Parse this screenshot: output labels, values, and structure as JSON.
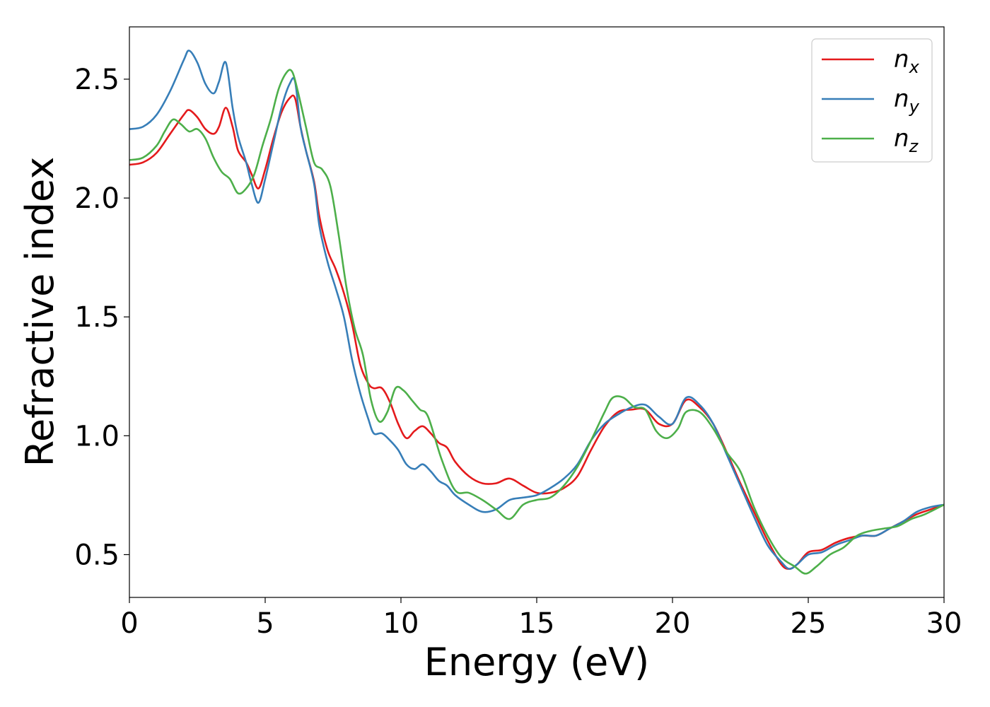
{
  "chart_data": {
    "type": "line",
    "xlabel": "Energy (eV)",
    "ylabel": "Refractive index",
    "xlim": [
      0,
      30
    ],
    "ylim": [
      0.32,
      2.72
    ],
    "xticks": [
      0,
      5,
      10,
      15,
      20,
      25,
      30
    ],
    "xtick_labels": [
      "0",
      "5",
      "10",
      "15",
      "20",
      "25",
      "30"
    ],
    "yticks": [
      0.5,
      1.0,
      1.5,
      2.0,
      2.5
    ],
    "ytick_labels": [
      "0.5",
      "1.0",
      "1.5",
      "2.0",
      "2.5"
    ],
    "grid": false,
    "legend_position": "top-right",
    "series": [
      {
        "name": "n",
        "subscript": "x",
        "color": "#e41a1c",
        "x": [
          0,
          0.5,
          1.0,
          1.5,
          2.0,
          2.2,
          2.5,
          2.8,
          3.1,
          3.3,
          3.55,
          3.8,
          4.0,
          4.3,
          4.5,
          4.75,
          5.0,
          5.3,
          5.6,
          5.9,
          6.1,
          6.3,
          6.5,
          6.8,
          7.0,
          7.3,
          7.6,
          7.9,
          8.2,
          8.5,
          8.8,
          9.0,
          9.3,
          9.6,
          9.9,
          10.2,
          10.5,
          10.8,
          11.1,
          11.4,
          11.7,
          12.0,
          12.5,
          13.0,
          13.5,
          14.0,
          14.5,
          15.0,
          15.5,
          16.0,
          16.5,
          17.0,
          17.5,
          18.0,
          18.5,
          19.0,
          19.5,
          20.0,
          20.5,
          21.0,
          21.5,
          22.0,
          22.5,
          23.0,
          23.5,
          24.0,
          24.3,
          24.6,
          25.0,
          25.5,
          26.0,
          26.5,
          27.0,
          27.5,
          28.0,
          28.5,
          29.0,
          29.5,
          30.0
        ],
        "y": [
          2.14,
          2.15,
          2.19,
          2.27,
          2.35,
          2.37,
          2.34,
          2.29,
          2.27,
          2.3,
          2.38,
          2.3,
          2.2,
          2.15,
          2.1,
          2.04,
          2.12,
          2.25,
          2.36,
          2.42,
          2.42,
          2.3,
          2.2,
          2.07,
          1.92,
          1.78,
          1.7,
          1.6,
          1.47,
          1.3,
          1.22,
          1.2,
          1.2,
          1.14,
          1.05,
          0.99,
          1.02,
          1.04,
          1.01,
          0.97,
          0.95,
          0.89,
          0.83,
          0.8,
          0.8,
          0.82,
          0.79,
          0.76,
          0.76,
          0.78,
          0.83,
          0.94,
          1.04,
          1.1,
          1.11,
          1.11,
          1.05,
          1.05,
          1.15,
          1.12,
          1.05,
          0.93,
          0.8,
          0.68,
          0.56,
          0.46,
          0.44,
          0.46,
          0.51,
          0.52,
          0.55,
          0.57,
          0.58,
          0.58,
          0.61,
          0.64,
          0.67,
          0.69,
          0.71
        ]
      },
      {
        "name": "n",
        "subscript": "y",
        "color": "#377eb8",
        "x": [
          0,
          0.5,
          1.0,
          1.5,
          2.0,
          2.2,
          2.5,
          2.8,
          3.1,
          3.3,
          3.55,
          3.8,
          4.0,
          4.3,
          4.5,
          4.75,
          5.0,
          5.3,
          5.6,
          5.9,
          6.1,
          6.3,
          6.5,
          6.8,
          7.0,
          7.3,
          7.6,
          7.9,
          8.2,
          8.5,
          8.8,
          9.0,
          9.3,
          9.6,
          9.9,
          10.2,
          10.5,
          10.8,
          11.1,
          11.4,
          11.7,
          12.0,
          12.5,
          13.0,
          13.5,
          14.0,
          14.5,
          15.0,
          15.5,
          16.0,
          16.5,
          17.0,
          17.5,
          18.0,
          18.5,
          19.0,
          19.5,
          20.0,
          20.5,
          21.0,
          21.5,
          22.0,
          22.5,
          23.0,
          23.5,
          24.0,
          24.3,
          24.6,
          25.0,
          25.5,
          26.0,
          26.5,
          27.0,
          27.5,
          28.0,
          28.5,
          29.0,
          29.5,
          30.0
        ],
        "y": [
          2.29,
          2.3,
          2.35,
          2.45,
          2.58,
          2.62,
          2.57,
          2.48,
          2.44,
          2.49,
          2.57,
          2.38,
          2.26,
          2.15,
          2.06,
          1.98,
          2.08,
          2.23,
          2.38,
          2.48,
          2.49,
          2.3,
          2.2,
          2.06,
          1.88,
          1.73,
          1.62,
          1.5,
          1.32,
          1.18,
          1.07,
          1.01,
          1.01,
          0.98,
          0.94,
          0.88,
          0.86,
          0.88,
          0.85,
          0.81,
          0.79,
          0.75,
          0.71,
          0.68,
          0.69,
          0.73,
          0.74,
          0.75,
          0.78,
          0.82,
          0.88,
          0.98,
          1.05,
          1.09,
          1.12,
          1.13,
          1.08,
          1.05,
          1.16,
          1.13,
          1.05,
          0.92,
          0.79,
          0.66,
          0.54,
          0.47,
          0.44,
          0.46,
          0.5,
          0.51,
          0.54,
          0.56,
          0.58,
          0.58,
          0.61,
          0.64,
          0.68,
          0.7,
          0.71
        ]
      },
      {
        "name": "n",
        "subscript": "z",
        "color": "#4daf4a",
        "x": [
          0,
          0.5,
          1.0,
          1.3,
          1.6,
          1.9,
          2.2,
          2.5,
          2.8,
          3.1,
          3.4,
          3.7,
          4.0,
          4.3,
          4.6,
          4.9,
          5.2,
          5.5,
          5.8,
          6.0,
          6.2,
          6.5,
          6.8,
          7.1,
          7.4,
          7.7,
          8.0,
          8.3,
          8.6,
          8.9,
          9.2,
          9.5,
          9.8,
          10.1,
          10.4,
          10.7,
          11.0,
          11.5,
          12.0,
          12.5,
          13.0,
          13.5,
          14.0,
          14.5,
          15.0,
          15.5,
          16.0,
          16.5,
          17.0,
          17.5,
          17.8,
          18.2,
          18.6,
          19.0,
          19.4,
          19.8,
          20.2,
          20.5,
          21.0,
          21.5,
          22.0,
          22.5,
          23.0,
          23.5,
          24.0,
          24.5,
          24.9,
          25.3,
          25.8,
          26.3,
          26.8,
          27.3,
          27.8,
          28.3,
          28.8,
          29.3,
          30.0
        ],
        "y": [
          2.16,
          2.17,
          2.22,
          2.28,
          2.33,
          2.31,
          2.28,
          2.29,
          2.25,
          2.17,
          2.11,
          2.08,
          2.02,
          2.04,
          2.1,
          2.22,
          2.33,
          2.46,
          2.53,
          2.53,
          2.45,
          2.3,
          2.15,
          2.12,
          2.05,
          1.85,
          1.62,
          1.45,
          1.34,
          1.15,
          1.06,
          1.1,
          1.2,
          1.19,
          1.15,
          1.11,
          1.08,
          0.9,
          0.77,
          0.76,
          0.73,
          0.69,
          0.65,
          0.71,
          0.73,
          0.74,
          0.79,
          0.87,
          0.98,
          1.1,
          1.16,
          1.16,
          1.12,
          1.11,
          1.02,
          0.99,
          1.03,
          1.1,
          1.1,
          1.03,
          0.93,
          0.85,
          0.7,
          0.58,
          0.49,
          0.45,
          0.42,
          0.45,
          0.5,
          0.53,
          0.58,
          0.6,
          0.61,
          0.62,
          0.65,
          0.67,
          0.71
        ]
      }
    ]
  }
}
